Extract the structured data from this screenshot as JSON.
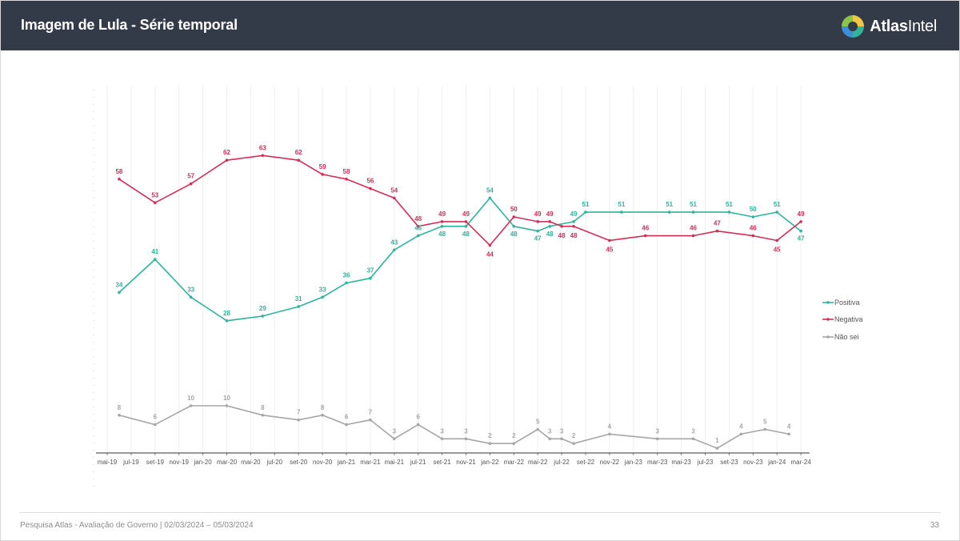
{
  "header": {
    "title": "Imagem de Lula - Série temporal"
  },
  "brand": {
    "name_bold": "Atlas",
    "name_light": "Intel"
  },
  "footer": {
    "text": "Pesquisa Atlas - Avaliação de Governo | 02/03/2024 – 05/03/2024",
    "page": "33"
  },
  "colors": {
    "header_bg": "#323b47",
    "positiva": "#2fb59a",
    "negativa": "#d42e58",
    "nao_sei": "#a6a6a6"
  },
  "chart_data": {
    "type": "line",
    "title": "Imagem de Lula - Série temporal",
    "xlabel": "",
    "ylabel": "",
    "grid": true,
    "legend_position": "right",
    "ylim": [
      0,
      70
    ],
    "categories": [
      "mai-19",
      "jul-19",
      "set-19",
      "nov-19",
      "jan-20",
      "mar-20",
      "mai-20",
      "jul-20",
      "set-20",
      "nov-20",
      "jan-21",
      "mar-21",
      "mai-21",
      "jul-21",
      "set-21",
      "nov-21",
      "jan-22",
      "mar-22",
      "mai-22",
      "jul-22",
      "set-22",
      "nov-22",
      "jan-23",
      "mar-23",
      "mai-23",
      "jul-23",
      "set-23",
      "nov-23",
      "jan-24",
      "mar-24"
    ],
    "series": [
      {
        "name": "Positiva",
        "color": "#2fb59a",
        "points": [
          {
            "x": 1.5,
            "y": 34
          },
          {
            "x": 3,
            "y": 41
          },
          {
            "x": 4.5,
            "y": 33
          },
          {
            "x": 6,
            "y": 28
          },
          {
            "x": 7.5,
            "y": 29
          },
          {
            "x": 9,
            "y": 31
          },
          {
            "x": 10,
            "y": 33
          },
          {
            "x": 11,
            "y": 36
          },
          {
            "x": 12,
            "y": 37
          },
          {
            "x": 13,
            "y": 43
          },
          {
            "x": 14,
            "y": 46
          },
          {
            "x": 15,
            "y": 48
          },
          {
            "x": 16,
            "y": 48
          },
          {
            "x": 17,
            "y": 54
          },
          {
            "x": 18,
            "y": 48
          },
          {
            "x": 19,
            "y": 47
          },
          {
            "x": 19.5,
            "y": 48
          },
          {
            "x": 20.5,
            "y": 49
          },
          {
            "x": 21,
            "y": 51
          },
          {
            "x": 22.5,
            "y": 51
          },
          {
            "x": 24.5,
            "y": 51
          },
          {
            "x": 25.5,
            "y": 51
          },
          {
            "x": 27,
            "y": 51
          },
          {
            "x": 28,
            "y": 50
          },
          {
            "x": 29,
            "y": 51
          },
          {
            "x": 30,
            "y": 47
          }
        ]
      },
      {
        "name": "Negativa",
        "color": "#d42e58",
        "points": [
          {
            "x": 1.5,
            "y": 58
          },
          {
            "x": 3,
            "y": 53
          },
          {
            "x": 4.5,
            "y": 57
          },
          {
            "x": 6,
            "y": 62
          },
          {
            "x": 7.5,
            "y": 63
          },
          {
            "x": 9,
            "y": 62
          },
          {
            "x": 10,
            "y": 59
          },
          {
            "x": 11,
            "y": 58
          },
          {
            "x": 12,
            "y": 56
          },
          {
            "x": 13,
            "y": 54
          },
          {
            "x": 14,
            "y": 48
          },
          {
            "x": 15,
            "y": 49
          },
          {
            "x": 16,
            "y": 49
          },
          {
            "x": 17,
            "y": 44
          },
          {
            "x": 18,
            "y": 50
          },
          {
            "x": 19,
            "y": 49
          },
          {
            "x": 19.5,
            "y": 49
          },
          {
            "x": 20,
            "y": 48
          },
          {
            "x": 20.5,
            "y": 48
          },
          {
            "x": 22,
            "y": 45
          },
          {
            "x": 23.5,
            "y": 46
          },
          {
            "x": 25.5,
            "y": 46
          },
          {
            "x": 26.5,
            "y": 47
          },
          {
            "x": 28,
            "y": 46
          },
          {
            "x": 29,
            "y": 45
          },
          {
            "x": 30,
            "y": 49
          }
        ]
      },
      {
        "name": "Não sei",
        "color": "#a6a6a6",
        "points": [
          {
            "x": 1.5,
            "y": 8
          },
          {
            "x": 3,
            "y": 6
          },
          {
            "x": 4.5,
            "y": 10
          },
          {
            "x": 6,
            "y": 10
          },
          {
            "x": 7.5,
            "y": 8
          },
          {
            "x": 9,
            "y": 7
          },
          {
            "x": 10,
            "y": 8
          },
          {
            "x": 11,
            "y": 6
          },
          {
            "x": 12,
            "y": 7
          },
          {
            "x": 13,
            "y": 3
          },
          {
            "x": 14,
            "y": 6
          },
          {
            "x": 15,
            "y": 3
          },
          {
            "x": 16,
            "y": 3
          },
          {
            "x": 17,
            "y": 2
          },
          {
            "x": 18,
            "y": 2
          },
          {
            "x": 19,
            "y": 5
          },
          {
            "x": 19.5,
            "y": 3
          },
          {
            "x": 20,
            "y": 3
          },
          {
            "x": 20.5,
            "y": 2
          },
          {
            "x": 22,
            "y": 4
          },
          {
            "x": 24,
            "y": 3
          },
          {
            "x": 25.5,
            "y": 3
          },
          {
            "x": 26.5,
            "y": 1
          },
          {
            "x": 27.5,
            "y": 4
          },
          {
            "x": 28.5,
            "y": 5
          },
          {
            "x": 29.5,
            "y": 4
          }
        ]
      }
    ]
  }
}
